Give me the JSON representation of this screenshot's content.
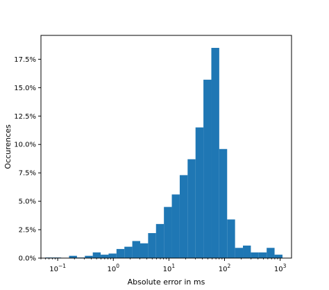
{
  "chart_data": {
    "type": "bar",
    "title": "",
    "xlabel": "Absolute error in ms",
    "ylabel": "Occurences",
    "x_scale": "log",
    "xlim": [
      0.05,
      1600
    ],
    "ylim": [
      0,
      0.196
    ],
    "grid": false,
    "bar_color": "#1f77b4",
    "y_ticks": [
      {
        "value": 0.0,
        "label": "0.0%"
      },
      {
        "value": 0.025,
        "label": "2.5%"
      },
      {
        "value": 0.05,
        "label": "5.0%"
      },
      {
        "value": 0.075,
        "label": "7.5%"
      },
      {
        "value": 0.1,
        "label": "10.0%"
      },
      {
        "value": 0.125,
        "label": "12.5%"
      },
      {
        "value": 0.15,
        "label": "15.0%"
      },
      {
        "value": 0.175,
        "label": "17.5%"
      }
    ],
    "x_ticks": [
      {
        "value": 0.1,
        "base": "10",
        "exp": "−1"
      },
      {
        "value": 1,
        "base": "10",
        "exp": "0"
      },
      {
        "value": 10,
        "base": "10",
        "exp": "1"
      },
      {
        "value": 100,
        "base": "10",
        "exp": "2"
      },
      {
        "value": 1000,
        "base": "10",
        "exp": "3"
      }
    ],
    "bins": {
      "x_start": 0.06,
      "x_end": 1100,
      "values": [
        0.0005,
        0.0005,
        0.0001,
        0.002,
        0.0005,
        0.002,
        0.005,
        0.003,
        0.004,
        0.008,
        0.01,
        0.015,
        0.013,
        0.022,
        0.03,
        0.045,
        0.056,
        0.073,
        0.087,
        0.115,
        0.157,
        0.185,
        0.096,
        0.034,
        0.009,
        0.011,
        0.005,
        0.005,
        0.009,
        0.003
      ]
    }
  }
}
